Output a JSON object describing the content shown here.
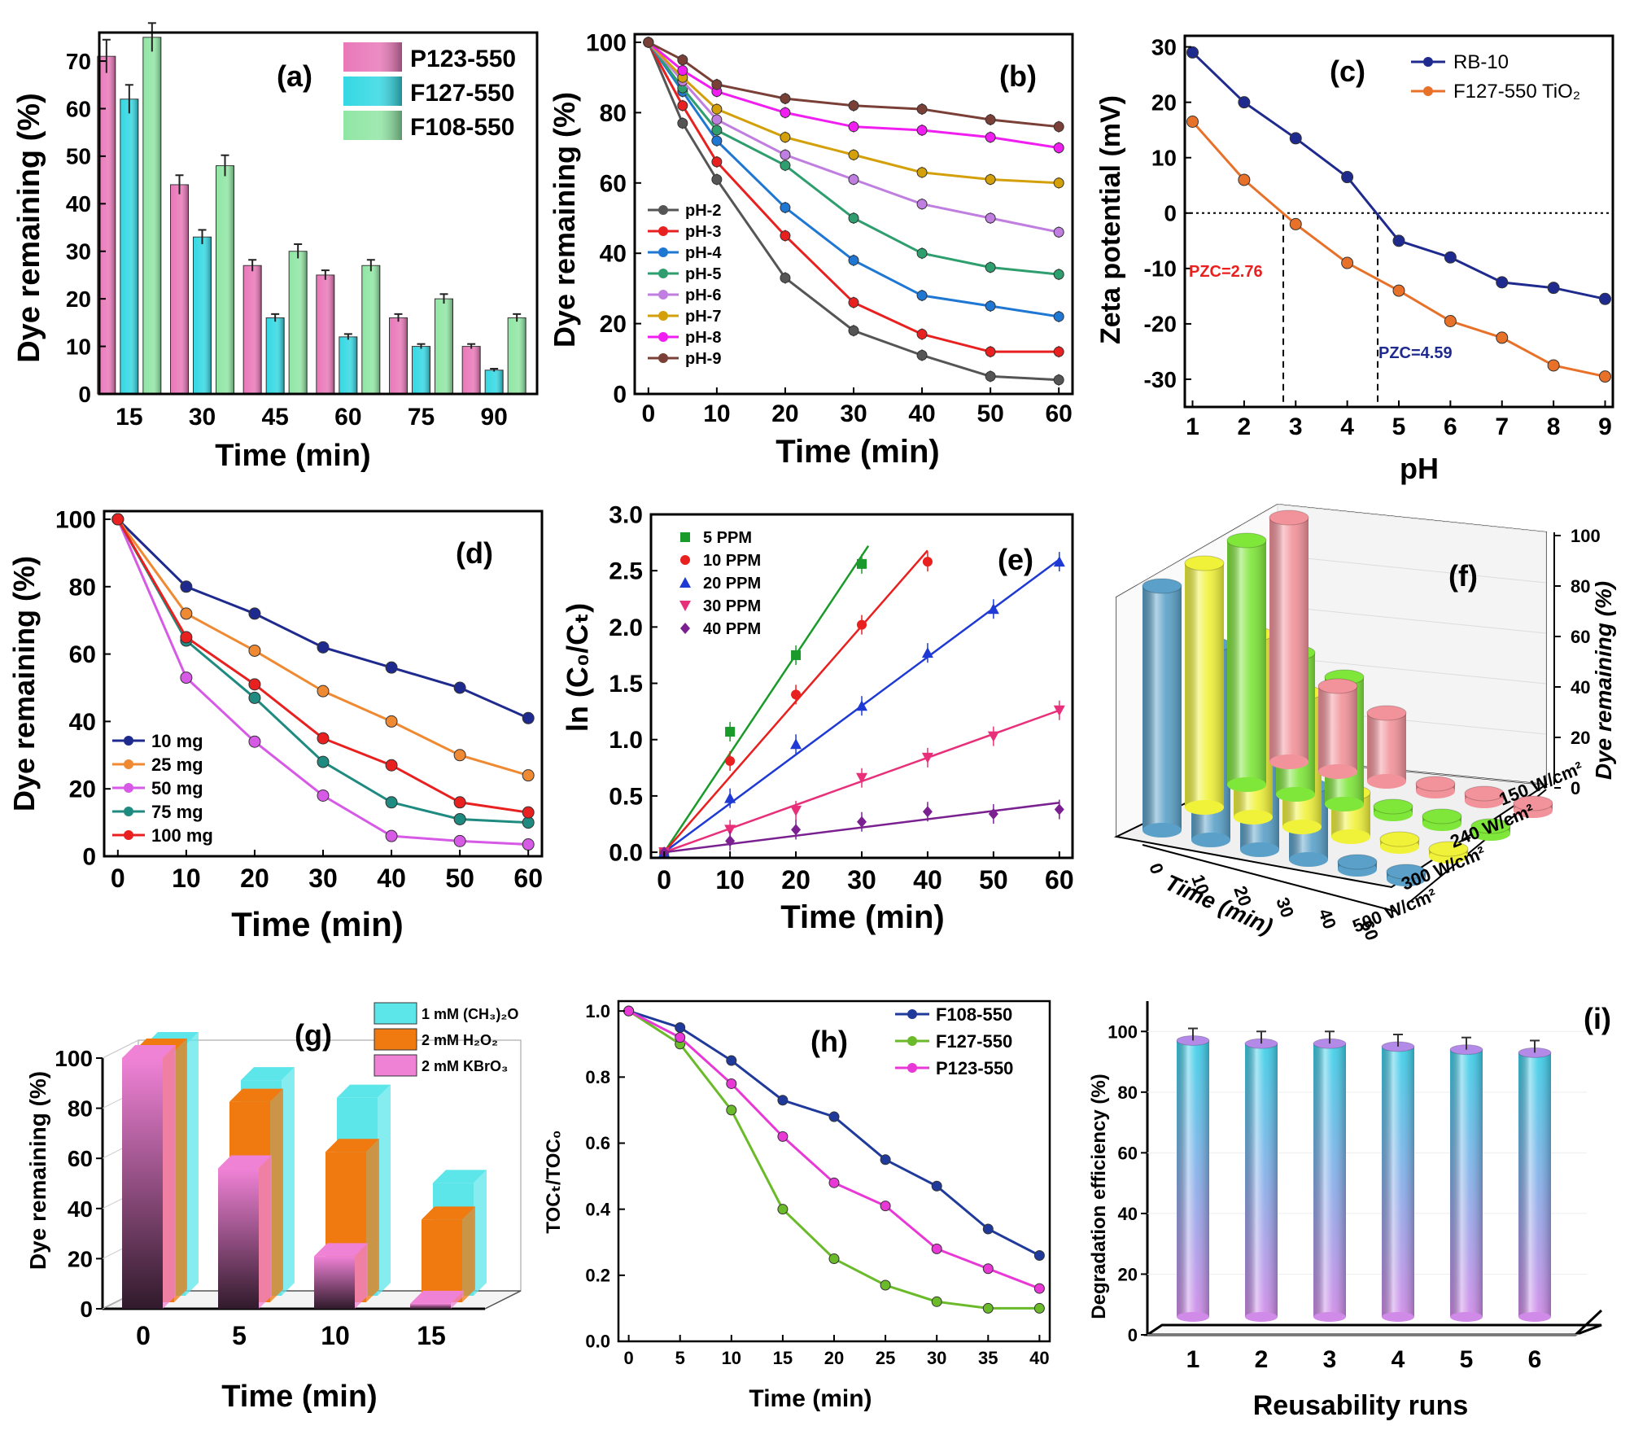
{
  "figure": {
    "colors": {
      "axis": "#000000",
      "pink_bar": "#e978b9",
      "cyan_bar": "#34d8e3",
      "green_bar": "#90e6a4",
      "navy": "#1f2a8f",
      "orange": "#f08a32",
      "red": "#e8201f",
      "teal": "#1f8b80",
      "violet": "#d65ae6"
    }
  },
  "chart_data": [
    {
      "id": "a",
      "panel_label": "(a)",
      "type": "bar",
      "xlabel": "Time (min)",
      "ylabel": "Dye remaining (%)",
      "ylim": [
        0,
        76
      ],
      "yticks": [
        0,
        10,
        20,
        30,
        40,
        50,
        60,
        70
      ],
      "categories": [
        "15",
        "30",
        "45",
        "60",
        "75",
        "90"
      ],
      "legend_position": "top-right",
      "series": [
        {
          "name": "P123-550",
          "color": "#e978b9",
          "values": [
            71,
            44,
            27,
            25,
            16,
            10
          ],
          "errors": [
            3.5,
            2,
            1.2,
            1,
            0.8,
            0.5
          ]
        },
        {
          "name": "F127-550",
          "color": "#34d8e3",
          "values": [
            62,
            33,
            16,
            12,
            10,
            5
          ],
          "errors": [
            3,
            1.5,
            0.8,
            0.6,
            0.5,
            0.3
          ]
        },
        {
          "name": "F108-550",
          "color": "#90e6a4",
          "values": [
            75,
            48,
            30,
            27,
            20,
            16
          ],
          "errors": [
            3,
            2.2,
            1.5,
            1.2,
            1,
            0.8
          ]
        }
      ]
    },
    {
      "id": "b",
      "panel_label": "(b)",
      "type": "line",
      "xlabel": "Time (min)",
      "ylabel": "Dye remaining (%)",
      "xlim": [
        -2,
        62
      ],
      "ylim": [
        0,
        100
      ],
      "xticks": [
        0,
        10,
        20,
        30,
        40,
        50,
        60
      ],
      "yticks": [
        0,
        20,
        40,
        60,
        80,
        100
      ],
      "x": [
        0,
        5,
        10,
        20,
        30,
        40,
        50,
        60
      ],
      "legend_position": "bottom-left",
      "series": [
        {
          "name": "pH-2",
          "color": "#555555",
          "values": [
            100,
            77,
            61,
            33,
            18,
            11,
            5,
            4
          ]
        },
        {
          "name": "pH-3",
          "color": "#e8201f",
          "values": [
            100,
            82,
            66,
            45,
            26,
            17,
            12,
            12
          ]
        },
        {
          "name": "pH-4",
          "color": "#1f77d4",
          "values": [
            100,
            86,
            72,
            53,
            38,
            28,
            25,
            22
          ]
        },
        {
          "name": "pH-5",
          "color": "#2e9e6e",
          "values": [
            100,
            87,
            75,
            65,
            50,
            40,
            36,
            34
          ]
        },
        {
          "name": "pH-6",
          "color": "#c07fe0",
          "values": [
            100,
            89,
            78,
            68,
            61,
            54,
            50,
            46
          ]
        },
        {
          "name": "pH-7",
          "color": "#d4a00a",
          "values": [
            100,
            90,
            81,
            73,
            68,
            63,
            61,
            60
          ]
        },
        {
          "name": "pH-8",
          "color": "#f01ef0",
          "values": [
            100,
            92,
            86,
            80,
            76,
            75,
            73,
            70
          ]
        },
        {
          "name": "pH-9",
          "color": "#7a4038",
          "values": [
            100,
            95,
            88,
            84,
            82,
            81,
            78,
            76
          ]
        }
      ]
    },
    {
      "id": "c",
      "panel_label": "(c)",
      "type": "line",
      "xlabel": "pH",
      "ylabel": "Zeta potential (mV)",
      "xlim": [
        0.85,
        9.15
      ],
      "ylim": [
        -35,
        32
      ],
      "xticks": [
        1,
        2,
        3,
        4,
        5,
        6,
        7,
        8,
        9
      ],
      "yticks": [
        -30,
        -20,
        -10,
        0,
        10,
        20,
        30
      ],
      "legend_position": "top-right",
      "series": [
        {
          "name": "RB-10",
          "color": "#1f2a8f",
          "x": [
            1,
            2,
            3,
            4,
            5,
            6,
            7,
            8,
            9
          ],
          "values": [
            29,
            20,
            13.5,
            6.5,
            -5,
            -8,
            -12.5,
            -13.5,
            -15.5
          ]
        },
        {
          "name": "F127-550 TiO₂",
          "color": "#e8712a",
          "x": [
            1,
            2,
            3,
            4,
            5,
            6,
            7,
            8,
            9
          ],
          "values": [
            16.5,
            6,
            -2,
            -9,
            -14,
            -19.5,
            -22.5,
            -27.5,
            -29.5
          ]
        }
      ],
      "annotations": [
        {
          "text": "PZC=2.76",
          "x": 2.76,
          "color": "#e8201f"
        },
        {
          "text": "PZC=4.59",
          "x": 4.59,
          "color": "#1f2a8f"
        }
      ]
    },
    {
      "id": "d",
      "panel_label": "(d)",
      "type": "line",
      "xlabel": "Time (min)",
      "ylabel": "Dye remaining (%)",
      "xlim": [
        -2,
        62
      ],
      "ylim": [
        0,
        100
      ],
      "xticks": [
        0,
        10,
        20,
        30,
        40,
        50,
        60
      ],
      "yticks": [
        0,
        20,
        40,
        60,
        80,
        100
      ],
      "x": [
        0,
        10,
        20,
        30,
        40,
        50,
        60
      ],
      "legend_position": "bottom-left",
      "series": [
        {
          "name": "10 mg",
          "color": "#1f2a8f",
          "values": [
            100,
            80,
            72,
            62,
            56,
            50,
            41
          ]
        },
        {
          "name": "25 mg",
          "color": "#f08a32",
          "values": [
            100,
            72,
            61,
            49,
            40,
            30,
            24
          ]
        },
        {
          "name": "50 mg",
          "color": "#d65ae6",
          "values": [
            100,
            53,
            34,
            18,
            6,
            4.5,
            3.5
          ]
        },
        {
          "name": "75 mg",
          "color": "#1f8b80",
          "values": [
            100,
            64,
            47,
            28,
            16,
            11,
            10
          ]
        },
        {
          "name": "100 mg",
          "color": "#e8201f",
          "values": [
            100,
            65,
            51,
            35,
            27,
            16,
            13
          ]
        }
      ]
    },
    {
      "id": "e",
      "panel_label": "(e)",
      "type": "scatter",
      "xlabel": "Time (min)",
      "ylabel": "ln (C₀/Cₜ)",
      "xlim": [
        -2,
        62
      ],
      "ylim": [
        -0.05,
        3.0
      ],
      "xticks": [
        0,
        10,
        20,
        30,
        40,
        50,
        60
      ],
      "yticks": [
        0.0,
        0.5,
        1.0,
        1.5,
        2.0,
        2.5,
        3.0
      ],
      "legend_position": "top-left",
      "series": [
        {
          "name": "5 PPM",
          "color": "#1a9a2a",
          "marker": "square",
          "x": [
            0,
            10,
            20,
            30
          ],
          "values": [
            0,
            1.07,
            1.75,
            2.56
          ],
          "fit_end": [
            31,
            2.72
          ]
        },
        {
          "name": "10 PPM",
          "color": "#e8201f",
          "marker": "circle",
          "x": [
            0,
            10,
            20,
            30,
            40
          ],
          "values": [
            0,
            0.81,
            1.4,
            2.02,
            2.58
          ],
          "fit_end": [
            40,
            2.68
          ]
        },
        {
          "name": "20 PPM",
          "color": "#1f3ad4",
          "marker": "triangle-up",
          "x": [
            0,
            10,
            20,
            30,
            40,
            50,
            60
          ],
          "values": [
            0,
            0.48,
            0.96,
            1.3,
            1.77,
            2.16,
            2.58
          ],
          "fit_end": [
            60,
            2.6
          ]
        },
        {
          "name": "30 PPM",
          "color": "#e8307a",
          "marker": "triangle-down",
          "x": [
            0,
            10,
            20,
            30,
            40,
            50,
            60
          ],
          "values": [
            0,
            0.2,
            0.37,
            0.66,
            0.84,
            1.03,
            1.26
          ],
          "fit_end": [
            60,
            1.26
          ]
        },
        {
          "name": "40 PPM",
          "color": "#7a2090",
          "marker": "diamond",
          "x": [
            0,
            10,
            20,
            30,
            40,
            50,
            60
          ],
          "values": [
            0,
            0.1,
            0.2,
            0.27,
            0.36,
            0.34,
            0.38
          ],
          "fit_end": [
            60,
            0.44
          ]
        }
      ]
    },
    {
      "id": "f",
      "panel_label": "(f)",
      "type": "bar",
      "style": "3d-cylinders",
      "xlabel": "Time (min)",
      "zlabel": "Dye remaining (%)",
      "zticks": [
        0,
        20,
        40,
        60,
        80,
        100
      ],
      "categories": [
        "0",
        "10",
        "20",
        "30",
        "40",
        "60"
      ],
      "series": [
        {
          "name": "500 W/cm²",
          "color": "#f2929a",
          "values": [
            100,
            35,
            28,
            3,
            3,
            3
          ]
        },
        {
          "name": "300 W/cm²",
          "color": "#7fe63a",
          "values": [
            100,
            58,
            52,
            3,
            3,
            3
          ]
        },
        {
          "name": "240 W/cm²",
          "color": "#f0f23a",
          "values": [
            100,
            75,
            55,
            18,
            3,
            3
          ]
        },
        {
          "name": "150 W/cm²",
          "color": "#5aa0c8",
          "values": [
            100,
            80,
            70,
            30,
            3,
            3
          ]
        }
      ]
    },
    {
      "id": "g",
      "panel_label": "(g)",
      "type": "bar",
      "style": "3d-blocks",
      "xlabel": "Time (min)",
      "ylabel": "Dye remaining (%)",
      "ylim": [
        0,
        100
      ],
      "yticks": [
        0,
        20,
        40,
        60,
        80,
        100
      ],
      "categories": [
        "0",
        "5",
        "10",
        "15"
      ],
      "legend_position": "top-right",
      "series": [
        {
          "name": "1 mM (CH₃)₂O",
          "color": "#5ce6ea",
          "values": [
            100,
            86,
            79,
            45
          ]
        },
        {
          "name": "2 mM H₂O₂",
          "color": "#f07a10",
          "values": [
            100,
            80,
            60,
            33
          ]
        },
        {
          "name": "2 mM KBrO₃",
          "color": "#f082d6",
          "values": [
            100,
            56,
            21,
            2
          ]
        }
      ]
    },
    {
      "id": "h",
      "panel_label": "(h)",
      "type": "line",
      "xlabel": "Time (min)",
      "ylabel": "TOCₜ/TOC₀",
      "xlim": [
        -1,
        41
      ],
      "ylim": [
        0,
        1.03
      ],
      "xticks": [
        0,
        5,
        10,
        15,
        20,
        25,
        30,
        35,
        40
      ],
      "yticks": [
        0.0,
        0.2,
        0.4,
        0.6,
        0.8,
        1.0
      ],
      "x": [
        0,
        5,
        10,
        15,
        20,
        25,
        30,
        35,
        40
      ],
      "legend_position": "top-right",
      "series": [
        {
          "name": "F108-550",
          "color": "#1f3a9a",
          "values": [
            1.0,
            0.95,
            0.85,
            0.73,
            0.68,
            0.55,
            0.47,
            0.34,
            0.26
          ]
        },
        {
          "name": "F127-550",
          "color": "#6aba2a",
          "values": [
            1.0,
            0.9,
            0.7,
            0.4,
            0.25,
            0.17,
            0.12,
            0.1,
            0.1
          ]
        },
        {
          "name": "P123-550",
          "color": "#e838d6",
          "values": [
            1.0,
            0.92,
            0.78,
            0.62,
            0.48,
            0.41,
            0.28,
            0.22,
            0.16
          ]
        }
      ]
    },
    {
      "id": "i",
      "panel_label": "(i)",
      "type": "bar",
      "style": "3d-cylinders",
      "xlabel": "Reusability runs",
      "ylabel": "Degradation efficiency (%)",
      "ylim": [
        0,
        110
      ],
      "yticks": [
        0,
        20,
        40,
        60,
        80,
        100
      ],
      "categories": [
        "1",
        "2",
        "3",
        "4",
        "5",
        "6"
      ],
      "values": [
        97,
        96,
        96,
        95,
        94,
        93
      ],
      "errors": [
        4,
        4,
        4,
        4,
        4,
        4
      ],
      "color_top": "#3ad0e8",
      "color_bottom": "#d08ae8"
    }
  ]
}
